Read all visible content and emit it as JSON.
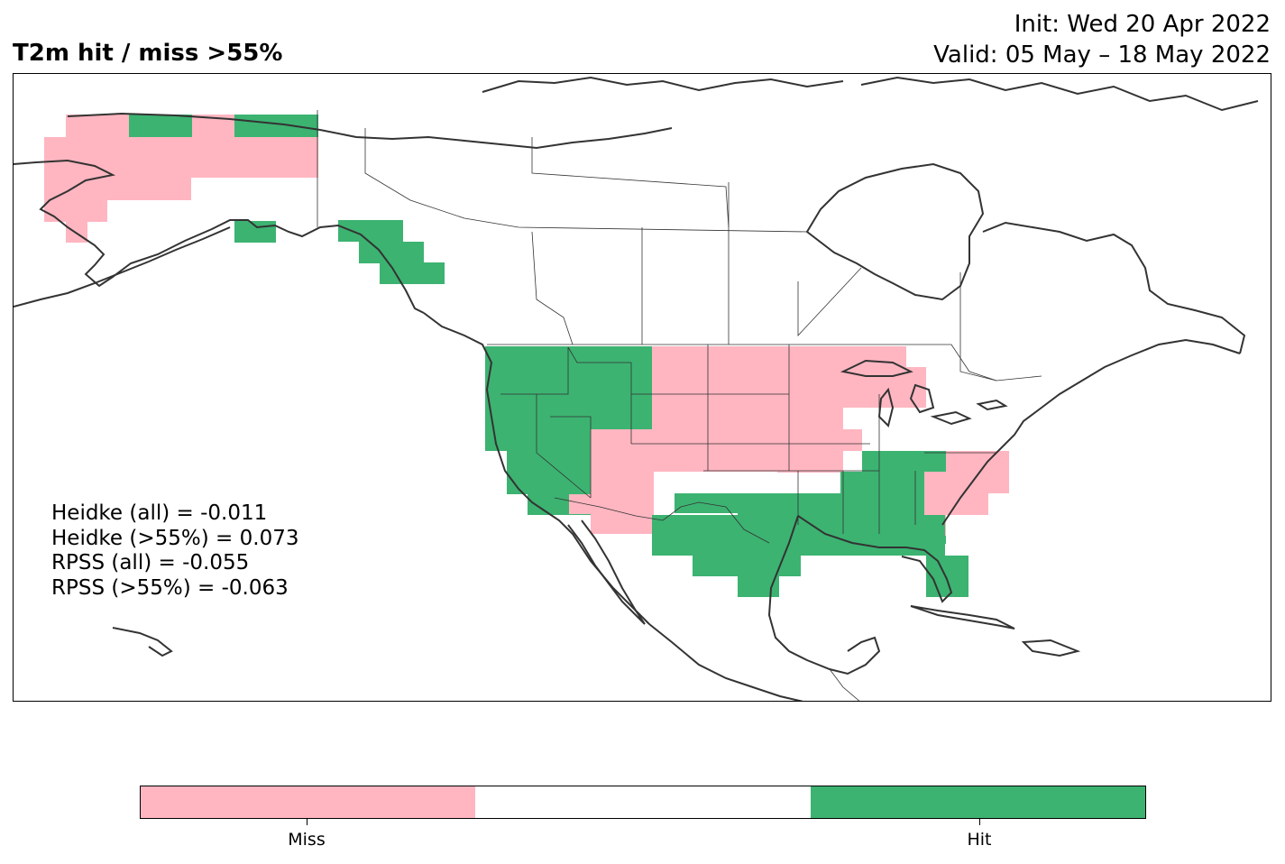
{
  "title": "T2m hit / miss  >55%",
  "init_line": "Init: Wed 20 Apr 2022",
  "valid_line": "Valid: 05 May – 18 May 2022",
  "stats": [
    "Heidke (all) = -0.011",
    "Heidke (>55%) = 0.073",
    "RPSS (all) = -0.055",
    "RPSS (>55%) = -0.063"
  ],
  "colorbar": {
    "labels": [
      "Miss",
      "Hit"
    ],
    "colors": [
      "#ffb6c1",
      "#ffffff",
      "#3cb371"
    ]
  },
  "colors": {
    "miss": "#ffb6c1",
    "hit": "#3cb371",
    "border": "#333333"
  }
}
